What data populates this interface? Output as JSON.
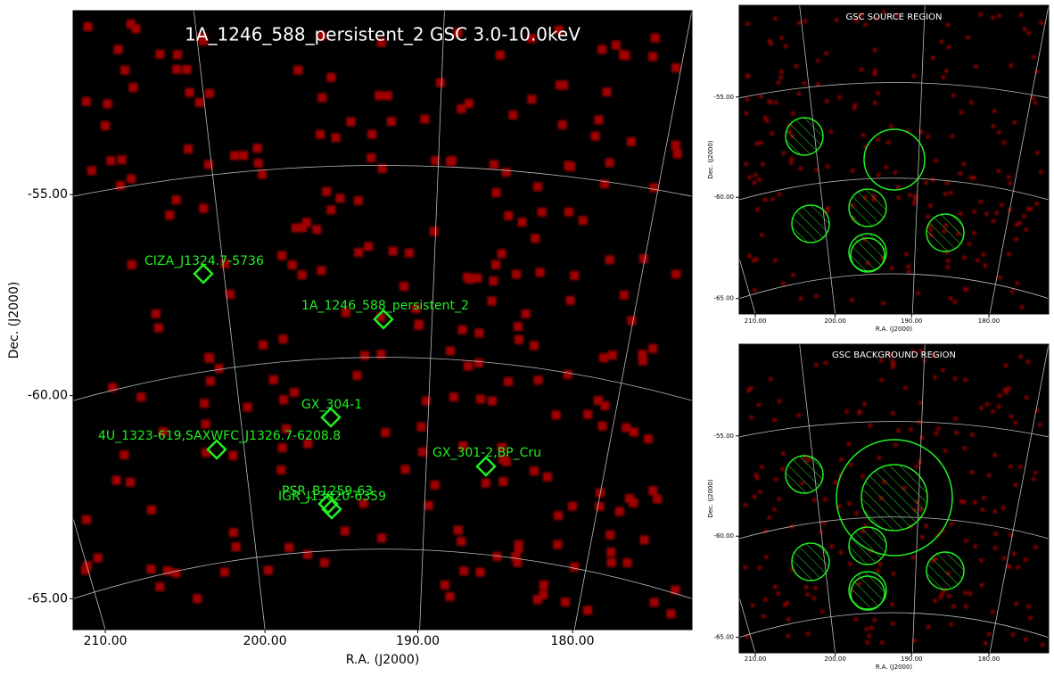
{
  "main": {
    "title": "1A_1246_588_persistent_2 GSC 3.0-10.0keV",
    "x_label": "R.A. (J2000)",
    "y_label": "Dec. (J2000)",
    "x_ticks": [
      "210.00",
      "200.00",
      "190.00",
      "180.00"
    ],
    "y_ticks": [
      "-55.00",
      "-60.00",
      "-65.00"
    ],
    "sources": [
      {
        "label": "CIZA_J1324.7-5736"
      },
      {
        "label": "1A_1246_588_persistent_2"
      },
      {
        "label": "GX_304-1"
      },
      {
        "label": "4U_1323-619,SAXWFC_J1326.7-6208.8"
      },
      {
        "label": "GX_301-2,BP_Cru"
      },
      {
        "label": "PSR_B1259-63"
      },
      {
        "label": "IGR_J13020-6359"
      }
    ]
  },
  "source_panel": {
    "title": "GSC SOURCE REGION",
    "x_label": "R.A. (J2000)",
    "y_label": "Dec. (J2000)",
    "x_ticks": [
      "210.00",
      "200.00",
      "190.00",
      "180.00"
    ],
    "y_ticks": [
      "-55.00",
      "-60.00",
      "-65.00"
    ]
  },
  "background_panel": {
    "title": "GSC BACKGROUND REGION",
    "x_label": "R.A. (J2000)",
    "y_label": "Dec. (J2000)",
    "x_ticks": [
      "210.00",
      "200.00",
      "190.00",
      "180.00"
    ],
    "y_ticks": [
      "-55.00",
      "-60.00",
      "-65.00"
    ]
  }
}
